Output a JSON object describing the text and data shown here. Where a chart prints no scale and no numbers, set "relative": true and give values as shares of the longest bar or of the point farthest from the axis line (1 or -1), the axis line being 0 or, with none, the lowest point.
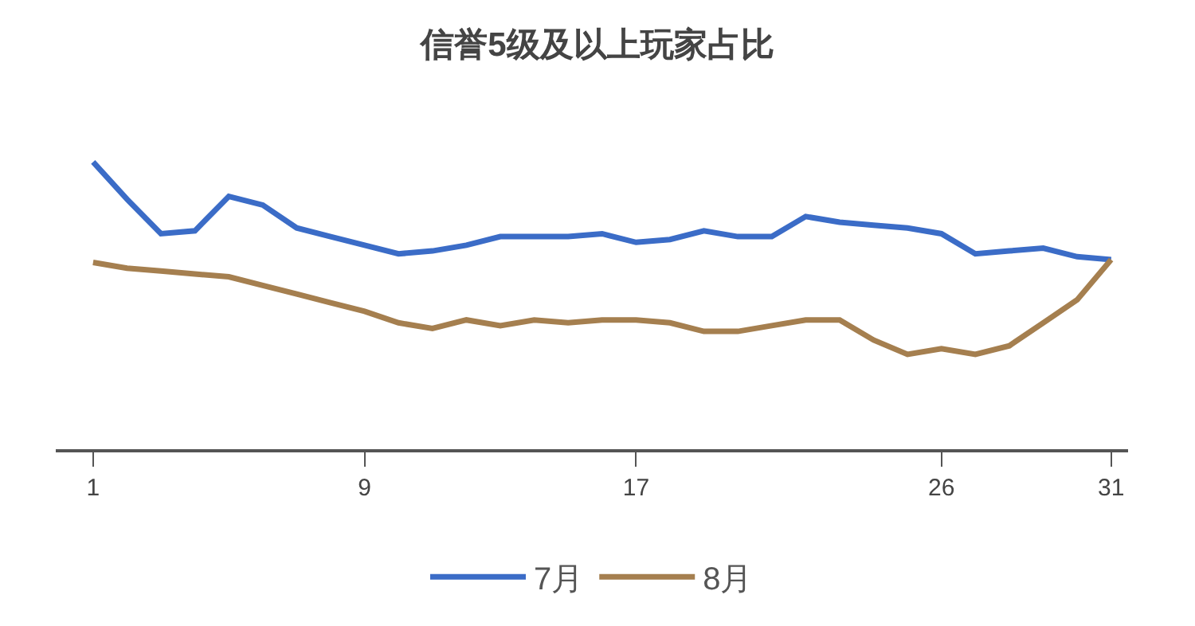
{
  "chart_data": {
    "type": "line",
    "title": "信誉5级及以上玩家占比",
    "relative": true,
    "tick_labels": "x",
    "legend": "bottom",
    "x": [
      1,
      2,
      3,
      4,
      5,
      6,
      7,
      8,
      9,
      10,
      11,
      12,
      13,
      14,
      15,
      16,
      17,
      18,
      19,
      20,
      21,
      22,
      23,
      24,
      25,
      26,
      27,
      28,
      29,
      30,
      31
    ],
    "xlim": [
      -0.1,
      31.5
    ],
    "xticks": [
      1,
      9,
      17,
      26,
      31
    ],
    "series": [
      {
        "name": "7月",
        "color": "#3b6cc7",
        "values": [
          1.0,
          0.87,
          0.75,
          0.76,
          0.88,
          0.85,
          0.77,
          0.74,
          0.71,
          0.68,
          0.69,
          0.71,
          0.74,
          0.74,
          0.74,
          0.75,
          0.72,
          0.73,
          0.76,
          0.74,
          0.74,
          0.81,
          0.79,
          0.78,
          0.77,
          0.75,
          0.68,
          0.69,
          0.7,
          0.67,
          0.66
        ]
      },
      {
        "name": "8月",
        "color": "#a57f4f",
        "values": [
          0.65,
          0.63,
          0.62,
          0.61,
          0.6,
          0.57,
          0.54,
          0.51,
          0.48,
          0.44,
          0.42,
          0.45,
          0.43,
          0.45,
          0.44,
          0.45,
          0.45,
          0.44,
          0.41,
          0.41,
          0.43,
          0.45,
          0.45,
          0.38,
          0.33,
          0.35,
          0.33,
          0.36,
          0.44,
          0.52,
          0.66
        ]
      }
    ]
  }
}
